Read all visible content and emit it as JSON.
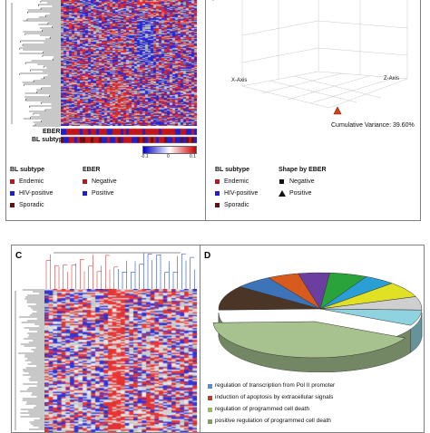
{
  "panel_a": {
    "row_eber": "EBER",
    "row_subtype": "BL subtype",
    "scale": {
      "min": "-0.1",
      "mid": "0",
      "max": "0.1"
    },
    "legend": {
      "subtype_title": "BL subtype",
      "subtype_items": [
        {
          "label": "Endemic",
          "color": "#c0161b"
        },
        {
          "label": "HIV-positive",
          "color": "#2020c8"
        },
        {
          "label": "Sporadic",
          "color": "#6b1010"
        }
      ],
      "eber_title": "EBER",
      "eber_items": [
        {
          "label": "Negative",
          "color": "#c0161b"
        },
        {
          "label": "Positive",
          "color": "#2020c8"
        }
      ]
    }
  },
  "panel_b": {
    "x_axis": "X-Axis",
    "z_axis": "Z-Axis",
    "cumulative": "Cumulative Variance: 39.60%",
    "legend": {
      "subtype_title": "BL subtype",
      "subtype_items": [
        {
          "label": "Endemic",
          "color": "#c0161b"
        },
        {
          "label": "HIV-positive",
          "color": "#2020c8"
        },
        {
          "label": "Sporadic",
          "color": "#6b1010"
        }
      ],
      "shape_title": "Shape by EBER",
      "shape_items": [
        {
          "label": "Negative",
          "icon": "square-icon"
        },
        {
          "label": "Positive",
          "icon": "triangle-icon"
        }
      ]
    }
  },
  "panel_c": {
    "letter": "C"
  },
  "panel_d": {
    "letter": "D",
    "legend": [
      {
        "label": "regulation of transcription from Pol II promoter",
        "color": "#4f8fd0"
      },
      {
        "label": "induction of apoptosis by extracellular signals",
        "color": "#c0392b"
      },
      {
        "label": "regulation of programmed cell death",
        "color": "#9bbb59"
      },
      {
        "label": "positive regulation of programmed cell death",
        "color": "#7e9e5e"
      }
    ],
    "slice_colors": [
      "#a7c18f",
      "#4a3526",
      "#3d73b8",
      "#d85a1c",
      "#6b3fa0",
      "#2aa33a",
      "#2a9fd6",
      "#e0e024",
      "#cfcfcf",
      "#8fd3e0"
    ]
  }
}
